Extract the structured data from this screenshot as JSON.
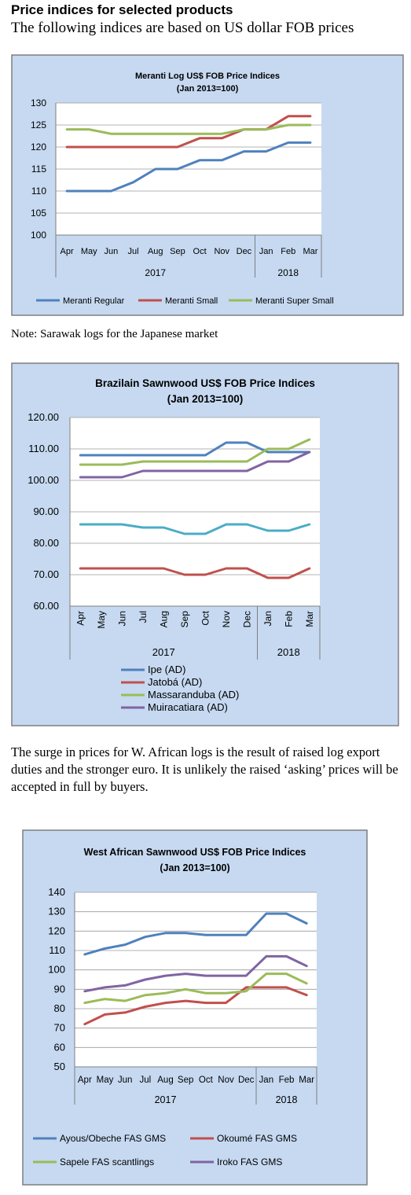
{
  "page": {
    "heading": "Price indices for selected products",
    "subheading": "The following indices are based on US dollar FOB prices",
    "note": "Note: Sarawak logs for the Japanese market",
    "paragraph": "The surge in prices for W. African logs is the result of raised log export duties and the stronger euro. It is unlikely the raised ‘asking’ prices will be accepted in full by buyers."
  },
  "chart_data": [
    {
      "type": "line",
      "title": "Meranti Log US$ FOB Price Indices",
      "subtitle": "(Jan 2013=100)",
      "categories": [
        "Apr",
        "May",
        "Jun",
        "Jul",
        "Aug",
        "Sep",
        "Oct",
        "Nov",
        "Dec",
        "Jan",
        "Feb",
        "Mar"
      ],
      "year_groups": [
        {
          "label": "2017",
          "count": 9
        },
        {
          "label": "2018",
          "count": 3
        }
      ],
      "ylim": [
        100,
        130
      ],
      "yticks": [
        "100",
        "105",
        "110",
        "115",
        "120",
        "125",
        "130"
      ],
      "grid": true,
      "legend_position": "bottom",
      "colors": {
        "background": "#c6d9f1",
        "plot": "#ffffff",
        "frame": "#7f7f7f"
      },
      "series": [
        {
          "name": "Meranti Regular",
          "color": "#4f81bd",
          "values": [
            110,
            110,
            110,
            112,
            115,
            115,
            117,
            117,
            119,
            119,
            121,
            121
          ]
        },
        {
          "name": "Meranti Small",
          "color": "#c0504d",
          "values": [
            120,
            120,
            120,
            120,
            120,
            120,
            122,
            122,
            124,
            124,
            127,
            127
          ]
        },
        {
          "name": "Meranti Super Small",
          "color": "#9bbb59",
          "values": [
            124,
            124,
            123,
            123,
            123,
            123,
            123,
            123,
            124,
            124,
            125,
            125
          ]
        }
      ]
    },
    {
      "type": "line",
      "title": "Brazilain Sawnwood US$ FOB Price Indices",
      "subtitle": "(Jan 2013=100)",
      "categories": [
        "Apr",
        "May",
        "Jun",
        "Jul",
        "Aug",
        "Sep",
        "Oct",
        "Nov",
        "Dec",
        "Jan",
        "Feb",
        "Mar"
      ],
      "year_groups": [
        {
          "label": "2017",
          "count": 9
        },
        {
          "label": "2018",
          "count": 3
        }
      ],
      "ylim": [
        60,
        120
      ],
      "yticks": [
        "60.00",
        "70.00",
        "80.00",
        "90.00",
        "100.00",
        "110.00",
        "120.00"
      ],
      "grid": true,
      "legend_position": "bottom",
      "colors": {
        "background": "#c6d9f1",
        "plot": "#ffffff",
        "frame": "#7f7f7f"
      },
      "series": [
        {
          "name": "Ipe (AD)",
          "color": "#4f81bd",
          "values": [
            108,
            108,
            108,
            108,
            108,
            108,
            108,
            112,
            112,
            109,
            109,
            109
          ]
        },
        {
          "name": "Jatobá (AD)",
          "color": "#c0504d",
          "values": [
            72,
            72,
            72,
            72,
            72,
            70,
            70,
            72,
            72,
            69,
            69,
            72
          ]
        },
        {
          "name": "Massaranduba (AD)",
          "color": "#9bbb59",
          "values": [
            105,
            105,
            105,
            106,
            106,
            106,
            106,
            106,
            106,
            110,
            110,
            113
          ]
        },
        {
          "name": "Muiracatiara (AD)",
          "color": "#8064a2",
          "values": [
            101,
            101,
            101,
            103,
            103,
            103,
            103,
            103,
            103,
            106,
            106,
            109
          ]
        },
        {
          "name": "",
          "color": "#4bacc6",
          "values": [
            86,
            86,
            86,
            85,
            85,
            83,
            83,
            86,
            86,
            84,
            84,
            86
          ]
        }
      ]
    },
    {
      "type": "line",
      "title": "West African Sawnwood US$ FOB Price Indices",
      "subtitle": "(Jan 2013=100)",
      "categories": [
        "Apr",
        "May",
        "Jun",
        "Jul",
        "Aug",
        "Sep",
        "Oct",
        "Nov",
        "Dec",
        "Jan",
        "Feb",
        "Mar"
      ],
      "year_groups": [
        {
          "label": "2017",
          "count": 9
        },
        {
          "label": "2018",
          "count": 3
        }
      ],
      "ylim": [
        50,
        140
      ],
      "yticks": [
        "50",
        "60",
        "70",
        "80",
        "90",
        "100",
        "110",
        "120",
        "130",
        "140"
      ],
      "grid": true,
      "legend_position": "bottom",
      "colors": {
        "background": "#c6d9f1",
        "plot": "#ffffff",
        "frame": "#7f7f7f"
      },
      "series": [
        {
          "name": "Ayous/Obeche FAS GMS",
          "color": "#4f81bd",
          "values": [
            108,
            111,
            113,
            117,
            119,
            119,
            118,
            118,
            118,
            129,
            129,
            124
          ]
        },
        {
          "name": "Okoumé  FAS GMS",
          "color": "#c0504d",
          "values": [
            72,
            77,
            78,
            81,
            83,
            84,
            83,
            83,
            91,
            91,
            91,
            87
          ]
        },
        {
          "name": "Sapele FAS scantlings",
          "color": "#9bbb59",
          "values": [
            83,
            85,
            84,
            87,
            88,
            90,
            88,
            88,
            89,
            98,
            98,
            93
          ]
        },
        {
          "name": "Iroko FAS GMS",
          "color": "#8064a2",
          "values": [
            89,
            91,
            92,
            95,
            97,
            98,
            97,
            97,
            97,
            107,
            107,
            102
          ]
        }
      ]
    }
  ]
}
